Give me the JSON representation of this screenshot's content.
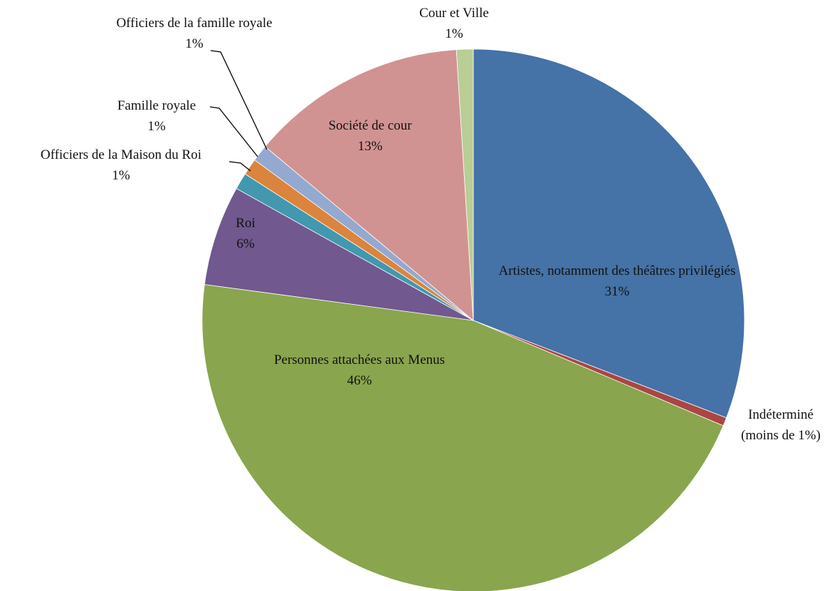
{
  "chart_data": {
    "type": "pie",
    "categories": [
      "Artistes, notamment des théâtres privilégiés",
      "Indéterminé",
      "Personnes attachées aux Menus",
      "Roi",
      "Officiers de la Maison du Roi",
      "Famille royale",
      "Officiers de la famille royale",
      "Société de cour",
      "Cour et Ville"
    ],
    "values": [
      31,
      0.5,
      46,
      6,
      1,
      1,
      1,
      13,
      1
    ],
    "value_labels": [
      "31%",
      "(moins de 1%)",
      "46%",
      "6%",
      "1%",
      "1%",
      "1%",
      "13%",
      "1%"
    ],
    "colors": [
      "#4572a7",
      "#aa4643",
      "#89a54e",
      "#71588f",
      "#4198af",
      "#db843d",
      "#93a9cf",
      "#d19392",
      "#b9cd96"
    ]
  }
}
